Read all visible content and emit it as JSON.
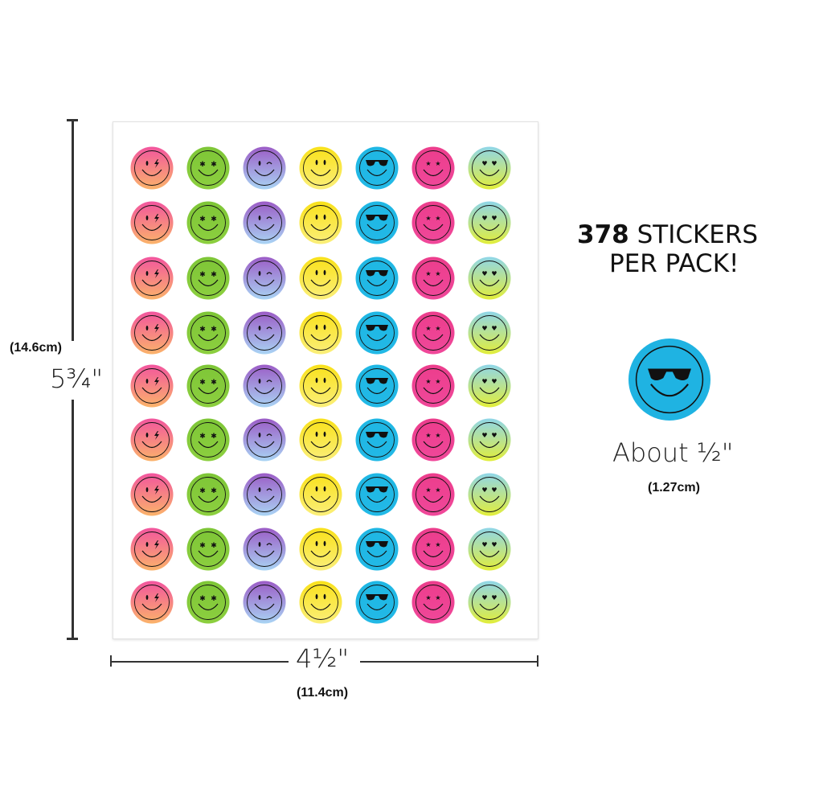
{
  "headline": {
    "count": "378",
    "line1_rest": "STICKERS",
    "line2": "PER PACK!"
  },
  "dimensions": {
    "height_in": "5¾\"",
    "height_cm": "(14.6cm)",
    "width_in": "4½\"",
    "width_cm": "(11.4cm)",
    "sticker_size_in": "About ½\"",
    "sticker_size_cm": "(1.27cm)"
  },
  "sheet": {
    "columns": 7,
    "rows": 9,
    "designs": [
      {
        "name": "lightning-eye",
        "colors": [
          "#f2559e",
          "#fbb36a"
        ],
        "eyes": "lightning"
      },
      {
        "name": "flower-eyes",
        "colors": [
          "#7ec637",
          "#8ccf3f"
        ],
        "eyes": "flowers"
      },
      {
        "name": "wink",
        "colors": [
          "#9b5cc6",
          "#a9d4f4"
        ],
        "eyes": "wink"
      },
      {
        "name": "classic",
        "colors": [
          "#f9e11a",
          "#fbef7a"
        ],
        "eyes": "dots"
      },
      {
        "name": "sunglasses",
        "colors": [
          "#1fb7e4",
          "#22b9e6"
        ],
        "eyes": "sunglasses"
      },
      {
        "name": "star-eyes",
        "colors": [
          "#ec3d8c",
          "#f0489a"
        ],
        "eyes": "stars"
      },
      {
        "name": "heart-eyes",
        "colors": [
          "#8fd6e8",
          "#e2ee3a"
        ],
        "eyes": "hearts"
      }
    ]
  },
  "featured_sticker": {
    "design": "sunglasses",
    "color": "#1fb3e2"
  },
  "colors": {
    "line": "#333333",
    "text": "#111111",
    "sheet_border": "#e2e2e2"
  }
}
